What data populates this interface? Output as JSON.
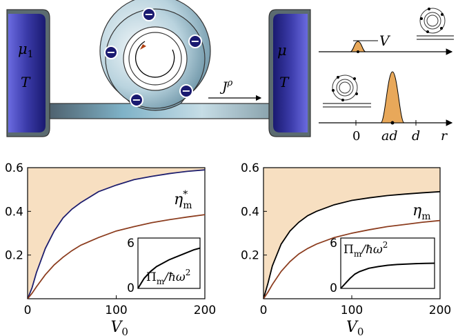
{
  "schematic": {
    "reservoir_left": {
      "mu": "μ",
      "mu_sub": "1",
      "temp": "T"
    },
    "reservoir_right": {
      "mu": "μ",
      "temp": "T"
    },
    "current": {
      "J": "J",
      "sup": "ρ"
    },
    "electron_symbol": "−",
    "potential": {
      "V": "V",
      "r": "r",
      "zero": "0",
      "ad": "ad",
      "d": "d"
    }
  },
  "colors": {
    "reservoir": "#4a4ab8",
    "fill_region": "#f7dfc1",
    "curve_dark_blue": "#1e1e6e",
    "curve_brown": "#8c3d1f",
    "curve_black": "#000000",
    "gaussian": "#e8a85a"
  },
  "chart_data": [
    {
      "type": "line",
      "xlabel": "V0",
      "xticks": [
        "0",
        "100",
        "200"
      ],
      "yticks": [
        "0.2",
        "0.4",
        "0.6"
      ],
      "xlim": [
        0,
        200
      ],
      "ylim": [
        0,
        0.6
      ],
      "curve_label": {
        "base": "η",
        "sub": "m",
        "sup": "*"
      },
      "shaded_above_curve": true,
      "series": [
        {
          "color": "#1e1e6e",
          "x": [
            0,
            5,
            10,
            20,
            30,
            40,
            50,
            60,
            80,
            100,
            120,
            140,
            160,
            180,
            200
          ],
          "y": [
            0,
            0.05,
            0.12,
            0.23,
            0.31,
            0.37,
            0.41,
            0.44,
            0.49,
            0.52,
            0.545,
            0.56,
            0.573,
            0.583,
            0.59
          ]
        },
        {
          "color": "#8c3d1f",
          "x": [
            0,
            5,
            10,
            20,
            30,
            40,
            50,
            60,
            80,
            100,
            120,
            140,
            160,
            180,
            200
          ],
          "y": [
            0,
            0.025,
            0.055,
            0.11,
            0.155,
            0.19,
            0.22,
            0.245,
            0.28,
            0.31,
            0.33,
            0.348,
            0.362,
            0.374,
            0.385
          ]
        }
      ],
      "inset": {
        "label": {
          "base": "Π",
          "sub": "m",
          "rest": "/ħω",
          "sup": "2"
        },
        "yticks": [
          "0",
          "6"
        ],
        "ylim": [
          0,
          6
        ],
        "series": [
          {
            "color": "#000000",
            "x": [
              0,
              0.05,
              0.1,
              0.2,
              0.3,
              0.4,
              0.5,
              0.6,
              0.7,
              0.8,
              0.9,
              1.0
            ],
            "y": [
              0,
              0.6,
              1.2,
              2.0,
              2.6,
              3.0,
              3.4,
              3.7,
              4.0,
              4.3,
              4.6,
              4.8
            ]
          }
        ]
      }
    },
    {
      "type": "line",
      "xlabel": "V0",
      "xticks": [
        "0",
        "100",
        "200"
      ],
      "yticks": [
        "0.2",
        "0.4",
        "0.6"
      ],
      "xlim": [
        0,
        200
      ],
      "ylim": [
        0,
        0.6
      ],
      "curve_label": {
        "base": "η",
        "sub": "m"
      },
      "shaded_above_curve": true,
      "series": [
        {
          "color": "#000000",
          "x": [
            0,
            5,
            10,
            20,
            30,
            40,
            50,
            60,
            80,
            100,
            120,
            140,
            160,
            180,
            200
          ],
          "y": [
            0,
            0.07,
            0.15,
            0.25,
            0.31,
            0.35,
            0.38,
            0.4,
            0.43,
            0.45,
            0.462,
            0.472,
            0.479,
            0.485,
            0.49
          ]
        },
        {
          "color": "#8c3d1f",
          "x": [
            0,
            5,
            10,
            20,
            30,
            40,
            50,
            60,
            80,
            100,
            120,
            140,
            160,
            180,
            200
          ],
          "y": [
            0,
            0.03,
            0.065,
            0.125,
            0.17,
            0.205,
            0.23,
            0.25,
            0.28,
            0.3,
            0.316,
            0.33,
            0.34,
            0.35,
            0.358
          ]
        }
      ],
      "inset": {
        "label": {
          "base": "Π",
          "sub": "m",
          "rest": "/ħω",
          "sup": "2"
        },
        "yticks": [
          "0",
          "6"
        ],
        "ylim": [
          0,
          6
        ],
        "series": [
          {
            "color": "#000000",
            "x": [
              0,
              0.05,
              0.1,
              0.15,
              0.2,
              0.3,
              0.4,
              0.5,
              0.6,
              0.7,
              0.8,
              0.9,
              1.0
            ],
            "y": [
              0,
              0.6,
              1.2,
              1.7,
              2.0,
              2.4,
              2.6,
              2.75,
              2.85,
              2.9,
              2.95,
              2.98,
              3.0
            ]
          }
        ]
      }
    }
  ]
}
